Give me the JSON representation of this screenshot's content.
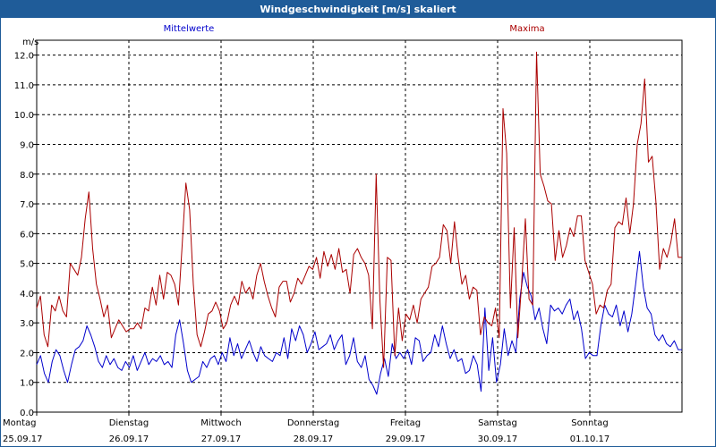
{
  "window": {
    "title": "Windgeschwindigkeit [m/s] skaliert"
  },
  "chart_data": {
    "type": "line",
    "title": "Windgeschwindigkeit [m/s] skaliert",
    "ylabel": "m/s",
    "ylim": [
      0,
      12.5
    ],
    "yticks": [
      "0.0",
      "1.0",
      "2.0",
      "3.0",
      "4.0",
      "5.0",
      "6.0",
      "7.0",
      "8.0",
      "9.0",
      "10.0",
      "11.0",
      "12.0"
    ],
    "xlim": [
      0,
      7.0
    ],
    "grid": true,
    "days": [
      {
        "weekday": "Montag",
        "date": "25.09.17"
      },
      {
        "weekday": "Dienstag",
        "date": "26.09.17"
      },
      {
        "weekday": "Mittwoch",
        "date": "27.09.17"
      },
      {
        "weekday": "Donnerstag",
        "date": "28.09.17"
      },
      {
        "weekday": "Freitag",
        "date": "29.09.17"
      },
      {
        "weekday": "Samstag",
        "date": "30.09.17"
      },
      {
        "weekday": "Sonntag",
        "date": "01.10.17"
      }
    ],
    "series": [
      {
        "name": "Mittelwerte",
        "color": "#0000cc",
        "values": [
          1.6,
          1.9,
          1.3,
          1.0,
          1.7,
          2.1,
          1.9,
          1.4,
          1.0,
          1.6,
          2.1,
          2.2,
          2.4,
          2.9,
          2.6,
          2.2,
          1.7,
          1.5,
          1.9,
          1.6,
          1.8,
          1.5,
          1.4,
          1.7,
          1.5,
          1.9,
          1.4,
          1.7,
          2.0,
          1.6,
          1.8,
          1.7,
          1.9,
          1.6,
          1.7,
          1.5,
          2.6,
          3.1,
          2.3,
          1.4,
          1.0,
          1.1,
          1.2,
          1.7,
          1.5,
          1.8,
          1.9,
          1.6,
          2.0,
          1.7,
          2.5,
          1.9,
          2.3,
          1.8,
          2.1,
          2.4,
          2.0,
          1.7,
          2.2,
          1.9,
          1.8,
          1.7,
          2.0,
          1.9,
          2.5,
          1.8,
          2.8,
          2.4,
          2.9,
          2.6,
          2.0,
          2.3,
          2.7,
          2.1,
          2.2,
          2.3,
          2.6,
          2.1,
          2.4,
          2.6,
          1.6,
          1.9,
          2.5,
          1.7,
          1.5,
          1.9,
          1.1,
          0.9,
          0.6,
          1.3,
          1.8,
          1.2,
          2.3,
          1.8,
          2.0,
          1.8,
          2.1,
          1.6,
          2.5,
          2.4,
          1.7,
          1.9,
          2.0,
          2.6,
          2.2,
          2.9,
          2.3,
          1.8,
          2.1,
          1.7,
          1.8,
          1.3,
          1.4,
          1.9,
          1.6,
          0.7,
          3.5,
          1.4,
          2.5,
          1.0,
          1.6,
          2.8,
          1.9,
          2.4,
          2.0,
          3.8,
          4.7,
          4.2,
          3.9,
          3.1,
          3.5,
          2.8,
          2.3,
          3.6,
          3.4,
          3.5,
          3.3,
          3.6,
          3.8,
          3.1,
          3.4,
          2.8,
          1.8,
          2.0,
          1.9,
          1.9,
          2.9,
          3.6,
          3.3,
          3.2,
          3.6,
          2.9,
          3.4,
          2.7,
          3.3,
          4.3,
          5.4,
          4.2,
          3.5,
          3.3,
          2.6,
          2.4,
          2.6,
          2.3,
          2.2,
          2.4,
          2.1,
          2.1
        ]
      },
      {
        "name": "Maxima",
        "color": "#aa0000",
        "values": [
          3.5,
          3.9,
          2.6,
          2.2,
          3.6,
          3.4,
          3.9,
          3.4,
          3.2,
          5.0,
          4.8,
          4.6,
          5.2,
          6.5,
          7.4,
          5.5,
          4.3,
          3.8,
          3.2,
          3.6,
          2.5,
          2.8,
          3.1,
          2.9,
          2.7,
          2.8,
          2.8,
          3.0,
          2.8,
          3.5,
          3.4,
          4.2,
          3.6,
          4.6,
          3.8,
          4.7,
          4.6,
          4.3,
          3.6,
          5.6,
          7.7,
          6.8,
          4.3,
          2.6,
          2.2,
          2.7,
          3.3,
          3.4,
          3.7,
          3.4,
          2.8,
          3.0,
          3.6,
          3.9,
          3.6,
          4.4,
          4.0,
          4.2,
          3.8,
          4.6,
          5.0,
          4.4,
          3.9,
          3.5,
          3.2,
          4.2,
          4.4,
          4.4,
          3.7,
          4.0,
          4.5,
          4.3,
          4.6,
          4.9,
          4.8,
          5.2,
          4.5,
          5.4,
          4.9,
          5.3,
          4.8,
          5.5,
          4.7,
          4.8,
          4.0,
          5.3,
          5.5,
          5.2,
          5.0,
          4.6,
          2.8,
          8.0,
          3.8,
          1.5,
          5.2,
          5.1,
          1.9,
          3.5,
          2.4,
          3.3,
          3.1,
          3.6,
          3.0,
          3.8,
          4.0,
          4.2,
          4.9,
          5.0,
          5.2,
          6.3,
          6.1,
          5.0,
          6.4,
          5.2,
          4.3,
          4.6,
          3.8,
          4.2,
          4.1,
          2.6,
          3.2,
          3.0,
          2.9,
          3.5,
          2.5,
          10.2,
          8.7,
          3.5,
          6.2,
          2.5,
          4.3,
          6.5,
          3.8,
          3.6,
          12.1,
          8.0,
          7.6,
          7.1,
          7.0,
          5.1,
          6.1,
          5.2,
          5.6,
          6.2,
          5.9,
          6.6,
          6.6,
          5.1,
          4.7,
          4.3,
          3.3,
          3.6,
          3.5,
          4.1,
          4.3,
          6.2,
          6.4,
          6.3,
          7.2,
          6.0,
          7.0,
          9.0,
          9.7,
          11.2,
          8.4,
          8.6,
          7.1,
          4.8,
          5.5,
          5.2,
          5.7,
          6.5,
          5.2,
          5.2
        ]
      }
    ]
  }
}
